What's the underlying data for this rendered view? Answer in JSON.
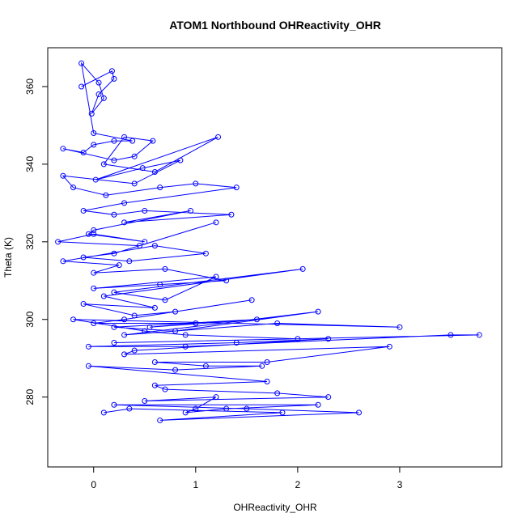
{
  "chart_data": {
    "type": "scatter",
    "title": "ATOM1 Northbound OHReactivity_OHR",
    "xlabel": "OHReactivity_OHR",
    "ylabel": "Theta (K)",
    "xlim": [
      -0.45,
      4.0
    ],
    "ylim": [
      262,
      370
    ],
    "xticks": [
      0,
      1,
      2,
      3
    ],
    "yticks": [
      280,
      300,
      320,
      340,
      360
    ],
    "xtick_labels": [
      "0",
      "1",
      "2",
      "3"
    ],
    "ytick_labels": [
      "280",
      "300",
      "320",
      "340",
      "360"
    ],
    "series": [
      {
        "name": "OHReactivity_OHR",
        "color": "#0000ff",
        "mode": "lines+markers",
        "x": [
          -0.12,
          0.18,
          0.2,
          0.05,
          -0.02,
          0.1,
          0.05,
          -0.12,
          0.0,
          0.38,
          0.2,
          0.0,
          -0.1,
          -0.3,
          0.2,
          0.4,
          0.58,
          0.3,
          0.1,
          0.6,
          1.22,
          0.02,
          0.48,
          0.85,
          0.4,
          -0.3,
          -0.2,
          0.12,
          0.65,
          1.0,
          1.4,
          0.3,
          -0.1,
          0.2,
          0.5,
          1.35,
          0.3,
          0.95,
          0.0,
          -0.05,
          0.5,
          0.0,
          -0.35,
          0.45,
          1.2,
          0.2,
          -0.1,
          0.35,
          1.1,
          0.6,
          -0.3,
          0.25,
          0.0,
          0.7,
          1.3,
          0.65,
          0.0,
          1.2,
          0.7,
          0.2,
          2.05,
          0.1,
          0.6,
          -0.1,
          0.4,
          0.8,
          1.55,
          0.3,
          0.0,
          1.0,
          0.55,
          1.6,
          0.2,
          0.8,
          2.2,
          0.3,
          1.8,
          3.0,
          -0.2,
          0.5,
          0.9,
          2.0,
          0.2,
          3.78,
          3.5,
          0.9,
          -0.05,
          1.4,
          2.3,
          0.4,
          0.3,
          2.9,
          1.7,
          0.6,
          1.1,
          1.65,
          0.8,
          -0.05,
          1.7,
          0.6,
          0.7,
          1.8,
          2.3,
          0.5,
          1.2,
          1.0,
          0.9,
          1.3,
          2.2,
          0.2,
          1.5,
          2.6,
          0.65,
          1.85,
          0.35,
          0.1
        ],
        "y": [
          360,
          364,
          362,
          358,
          353,
          357,
          361,
          366,
          348,
          346,
          346,
          345,
          343,
          344,
          341,
          342,
          346,
          347,
          340,
          338,
          347,
          336,
          339,
          341,
          335,
          337,
          334,
          332,
          334,
          335,
          334,
          330,
          328,
          327,
          328,
          327,
          325,
          328,
          323,
          322,
          320,
          322,
          320,
          319,
          325,
          317,
          316,
          315,
          317,
          319,
          315,
          314,
          312,
          313,
          310,
          309,
          308,
          311,
          305,
          307,
          313,
          306,
          303,
          304,
          301,
          302,
          305,
          300,
          299,
          299,
          298,
          300,
          298,
          297,
          302,
          296,
          299,
          298,
          300,
          297,
          296,
          295,
          294,
          296,
          296,
          293,
          293,
          294,
          295,
          292,
          291,
          293,
          289,
          289,
          288,
          288,
          287,
          288,
          284,
          283,
          282,
          281,
          280,
          279,
          280,
          277,
          276,
          277,
          278,
          278,
          277,
          276,
          274,
          276,
          277,
          276
        ]
      }
    ]
  }
}
